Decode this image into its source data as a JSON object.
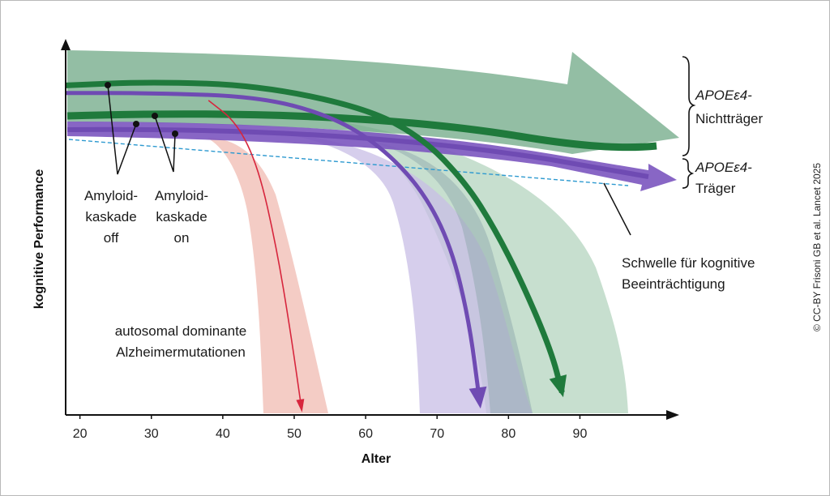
{
  "chart_data": {
    "type": "line",
    "xlabel": "Alter",
    "ylabel": "kognitive Performance",
    "xlim": [
      18,
      103
    ],
    "x_ticks": [
      20,
      30,
      40,
      50,
      60,
      70,
      80,
      90
    ],
    "series": [
      {
        "name": "APOEε4-Nichtträger",
        "color": "#1f7a3c",
        "band_color": "#8fbf9f",
        "x": [
          18,
          30,
          45,
          60,
          68,
          74,
          78,
          82,
          86,
          87.5
        ],
        "y": [
          0.88,
          0.89,
          0.88,
          0.82,
          0.74,
          0.62,
          0.5,
          0.35,
          0.17,
          0.06
        ]
      },
      {
        "name": "APOEε4-Träger",
        "color": "#6f4bb3",
        "band_color": "#c8bde6",
        "x": [
          18,
          30,
          45,
          55,
          62,
          68,
          72,
          74.5,
          76
        ],
        "y": [
          0.86,
          0.86,
          0.85,
          0.8,
          0.72,
          0.6,
          0.45,
          0.25,
          0.03
        ]
      },
      {
        "name": "autosomal dominante Alzheimermutationen",
        "color": "#d7263d",
        "band_color": "#f2c3bb",
        "x": [
          38,
          42,
          45,
          47.5,
          49.5,
          51
        ],
        "y": [
          0.84,
          0.78,
          0.66,
          0.45,
          0.22,
          0.02
        ]
      }
    ],
    "threshold": {
      "name": "Schwelle für kognitive Beeinträchtigung",
      "style": "dashed"
    },
    "annotations": {
      "nontrager": [
        "APOEε4-",
        "Nichtträger"
      ],
      "trager": [
        "APOEε4-",
        "Träger"
      ],
      "amyloid_off": [
        "Amyloid-",
        "kaskade",
        "off"
      ],
      "amyloid_on": [
        "Amyloid-",
        "kaskade",
        "on"
      ],
      "threshold": [
        "Schwelle für kognitive",
        "Beeinträchtigung"
      ],
      "admutation": [
        "autosomal dominante",
        "Alzheimermutationen"
      ]
    },
    "credit": "© CC-BY Frisoni GB et al. Lancet 2025"
  }
}
